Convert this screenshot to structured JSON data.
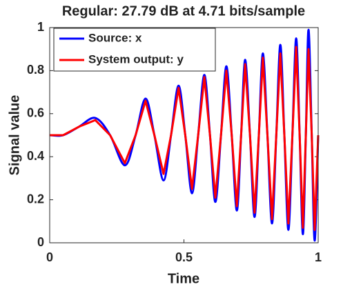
{
  "chart_data": {
    "type": "line",
    "title": "Regular: 27.79 dB at 4.71 bits/sample",
    "xlabel": "Time",
    "ylabel": "Signal value",
    "x": [
      0,
      0.05,
      0.11,
      0.17,
      0.225,
      0.28,
      0.32,
      0.357,
      0.39,
      0.424,
      0.452,
      0.48,
      0.505,
      0.53,
      0.553,
      0.576,
      0.597,
      0.617,
      0.638,
      0.658,
      0.678,
      0.697,
      0.713,
      0.728,
      0.746,
      0.763,
      0.779,
      0.794,
      0.811,
      0.828,
      0.844,
      0.859,
      0.874,
      0.889,
      0.904,
      0.918,
      0.931,
      0.943,
      0.954,
      0.964,
      0.976,
      0.987,
      1
    ],
    "series": [
      {
        "name": "Source: x",
        "color": "#0000ff",
        "values": [
          0.5,
          0.5,
          0.54,
          0.58,
          0.5,
          0.36,
          0.5,
          0.67,
          0.5,
          0.29,
          0.5,
          0.73,
          0.5,
          0.23,
          0.5,
          0.78,
          0.5,
          0.19,
          0.5,
          0.82,
          0.5,
          0.15,
          0.5,
          0.85,
          0.5,
          0.12,
          0.5,
          0.88,
          0.5,
          0.09,
          0.5,
          0.92,
          0.5,
          0.06,
          0.5,
          0.95,
          0.5,
          0.04,
          0.5,
          0.99,
          0.5,
          0.01,
          0.5
        ]
      },
      {
        "name": "System output: y",
        "color": "#ff0000",
        "values": [
          0.5,
          0.5,
          0.54,
          0.57,
          0.5,
          0.37,
          0.5,
          0.66,
          0.5,
          0.32,
          0.5,
          0.72,
          0.5,
          0.25,
          0.5,
          0.77,
          0.5,
          0.21,
          0.5,
          0.8,
          0.5,
          0.17,
          0.5,
          0.83,
          0.5,
          0.14,
          0.5,
          0.86,
          0.5,
          0.11,
          0.5,
          0.88,
          0.5,
          0.09,
          0.5,
          0.91,
          0.5,
          0.07,
          0.5,
          0.9,
          0.5,
          0.06,
          0.5
        ]
      }
    ],
    "xlim": [
      0,
      1
    ],
    "xticks": [
      0,
      0.5,
      1
    ],
    "ylim": [
      0,
      1
    ],
    "yticks": [
      0,
      0.2,
      0.4,
      0.6,
      0.8,
      1
    ],
    "legend": "upper left",
    "grid": false
  }
}
